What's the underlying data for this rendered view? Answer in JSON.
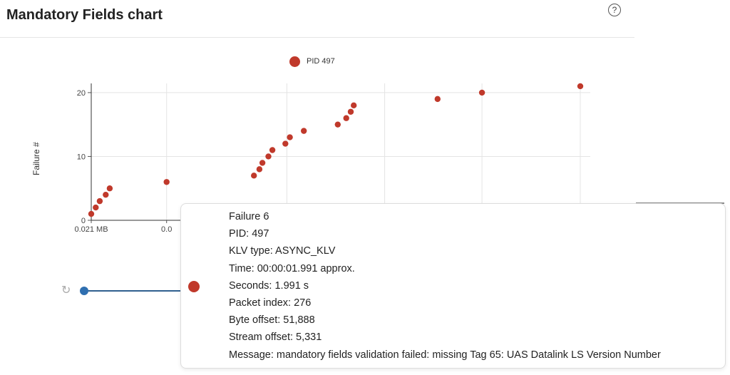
{
  "header": {
    "title": "Mandatory Fields chart"
  },
  "legend": {
    "label": "PID 497",
    "color": "#c0392b"
  },
  "chart_data": {
    "type": "scatter",
    "title": "Mandatory Fields chart",
    "ylabel": "Failure #",
    "xlabel": "",
    "ylim": [
      0,
      22
    ],
    "yticks": [
      0,
      10,
      20
    ],
    "xtick_labels": [
      "0.021 MB",
      "0.0"
    ],
    "xlim": [
      0,
      100
    ],
    "grid": true,
    "legend_position": "top-center",
    "series": [
      {
        "name": "PID 497",
        "color": "#c0392b",
        "points": [
          {
            "x": 0,
            "y": 1
          },
          {
            "x": 0.9,
            "y": 2
          },
          {
            "x": 1.7,
            "y": 3
          },
          {
            "x": 2.9,
            "y": 4
          },
          {
            "x": 3.7,
            "y": 5
          },
          {
            "x": 15.1,
            "y": 6
          },
          {
            "x": 32.6,
            "y": 7
          },
          {
            "x": 33.7,
            "y": 8
          },
          {
            "x": 34.3,
            "y": 9
          },
          {
            "x": 35.5,
            "y": 10
          },
          {
            "x": 36.3,
            "y": 11
          },
          {
            "x": 38.9,
            "y": 12
          },
          {
            "x": 39.8,
            "y": 13
          },
          {
            "x": 42.6,
            "y": 14
          },
          {
            "x": 49.4,
            "y": 15
          },
          {
            "x": 51.1,
            "y": 16
          },
          {
            "x": 52.0,
            "y": 17
          },
          {
            "x": 52.6,
            "y": 18
          },
          {
            "x": 69.4,
            "y": 19
          },
          {
            "x": 78.3,
            "y": 20
          },
          {
            "x": 98.0,
            "y": 21
          }
        ]
      }
    ]
  },
  "tooltip": {
    "lines": [
      "Failure 6",
      "PID: 497",
      "KLV type: ASYNC_KLV",
      "Time: 00:00:01.991 approx.",
      "Seconds: 1.991 s",
      "Packet index: 276",
      "Byte offset: 51,888",
      "Stream offset: 5,331",
      "Message: mandatory fields validation failed: missing Tag 65: UAS Datalink LS Version Number"
    ]
  },
  "icons": {
    "help": "question-circle-icon",
    "reset": "reset-icon"
  }
}
